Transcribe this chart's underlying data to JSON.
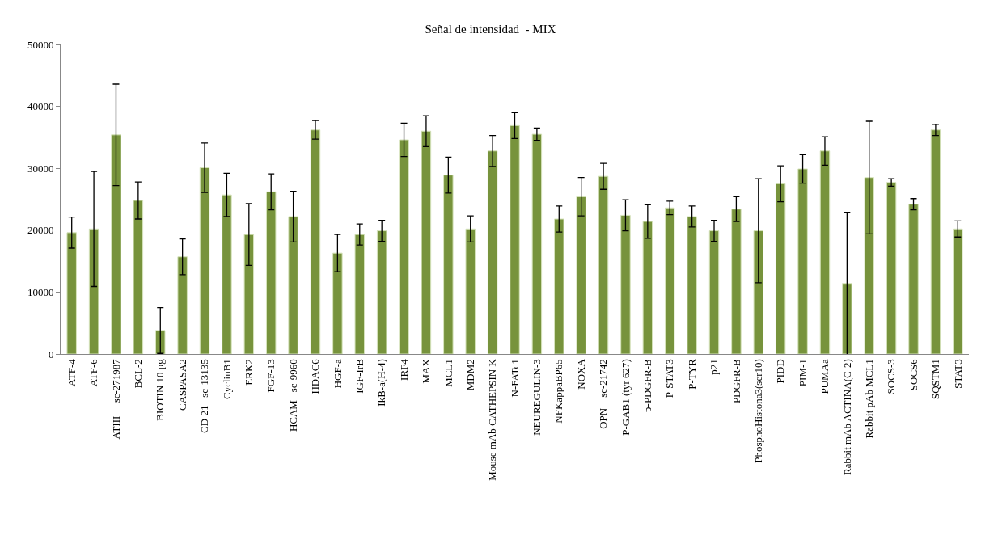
{
  "chart_data": {
    "type": "bar",
    "title": "Señal de intensidad  - MIX",
    "categories": [
      "ATF-4",
      "ATF-6",
      "ATIII     sc-271987",
      "BCL-2",
      "BIOTIN 10 pg",
      "CASPASA2",
      "CD 21   sc-13135",
      "CyclinB1",
      "ERK2",
      "FGF-13",
      "HCAM   sc-9960",
      "HDAC6",
      "HGF-a",
      "IGF-IrB",
      "IkB-a(H-4)",
      "IRF4",
      "MAX",
      "MCL1",
      "MDM2",
      "Mouse mAb CATHEPSIN K",
      "N-FATc1",
      "NEUREGULIN-3",
      "NFKappaBP65",
      "NOXA",
      "OPN    sc-21742",
      "P-GAB1 (tyr 627)",
      "p-PDGFR-B",
      "P-STAT3",
      "P-TYR",
      "p21",
      "PDGFR-B",
      "PhosphoHistona3(ser10)",
      "PIDD",
      "PIM-1",
      "PUMAa",
      "Rabbit mAb ACTINA(C-2)",
      "Rabbit pAb MCL1",
      "SOCS-3",
      "SOCS6",
      "SQSTM1",
      "STAT3"
    ],
    "values": [
      19600,
      20200,
      35400,
      24800,
      3800,
      15700,
      30100,
      25700,
      19300,
      26200,
      22200,
      36200,
      16300,
      19300,
      19900,
      34600,
      36000,
      28900,
      20200,
      32800,
      36900,
      35500,
      21800,
      25400,
      28700,
      22400,
      21400,
      23600,
      22200,
      19900,
      23400,
      19900,
      27500,
      29900,
      32800,
      11400,
      28500,
      27700,
      24200,
      36200,
      20200
    ],
    "errors": [
      2500,
      9300,
      8200,
      3000,
      3700,
      2900,
      4000,
      3500,
      5000,
      2900,
      4100,
      1500,
      3000,
      1700,
      1700,
      2700,
      2500,
      2900,
      2100,
      2500,
      2100,
      1000,
      2100,
      3100,
      2100,
      2500,
      2700,
      1100,
      1700,
      1700,
      2000,
      8400,
      2900,
      2300,
      2300,
      11500,
      9100,
      600,
      900,
      900,
      1300
    ],
    "color": "#77933c",
    "ylim": [
      0,
      50000
    ],
    "yticks": [
      0,
      10000,
      20000,
      30000,
      40000,
      50000
    ],
    "legend": false
  }
}
